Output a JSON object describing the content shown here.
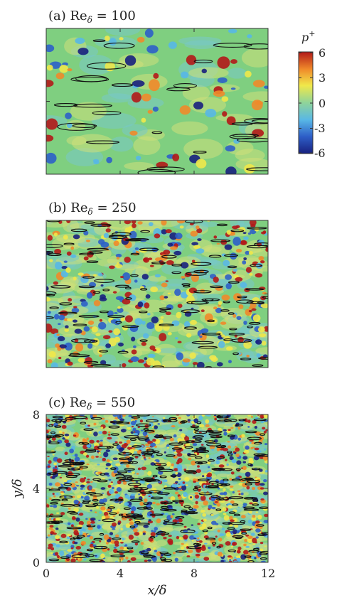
{
  "figure": {
    "panels": [
      {
        "label": "(a) Re",
        "sub": "δ",
        "eq": " = 100"
      },
      {
        "label": "(b) Re",
        "sub": "δ",
        "eq": " = 250"
      },
      {
        "label": "(c) Re",
        "sub": "δ",
        "eq": " = 550"
      }
    ],
    "colorbar": {
      "title": "p",
      "title_sup": "+",
      "ticks": [
        "6",
        "3",
        "0",
        "-3",
        "-6"
      ]
    },
    "axes": {
      "xlabel": "x/δ",
      "ylabel": "y/δ",
      "xticks": [
        "0",
        "4",
        "8",
        "12"
      ],
      "yticks": [
        "0",
        "4",
        "8"
      ]
    }
  },
  "chart_data": [
    {
      "type": "heatmap",
      "title": "(a) Re_δ = 100",
      "xlim": [
        0,
        12
      ],
      "ylim": [
        0,
        8
      ],
      "colorscale": "jet",
      "clim": [
        -6,
        6
      ],
      "overlay": "black contour lines"
    },
    {
      "type": "heatmap",
      "title": "(b) Re_δ = 250",
      "xlim": [
        0,
        12
      ],
      "ylim": [
        0,
        8
      ],
      "colorscale": "jet",
      "clim": [
        -6,
        6
      ],
      "overlay": "black contour lines"
    },
    {
      "type": "heatmap",
      "title": "(c) Re_δ = 550",
      "xlim": [
        0,
        12
      ],
      "ylim": [
        0,
        8
      ],
      "xticks": [
        0,
        4,
        8,
        12
      ],
      "yticks": [
        0,
        4,
        8
      ],
      "xlabel": "x/δ",
      "ylabel": "y/δ",
      "colorscale": "jet",
      "clim": [
        -6,
        6
      ],
      "overlay": "black contour lines"
    }
  ],
  "colors": {
    "background_field": "#7fcf80",
    "jet_stops": [
      "#18207e",
      "#2e5fc8",
      "#58b7e6",
      "#8fd49a",
      "#f0e84a",
      "#f08a2a",
      "#b21818"
    ]
  }
}
